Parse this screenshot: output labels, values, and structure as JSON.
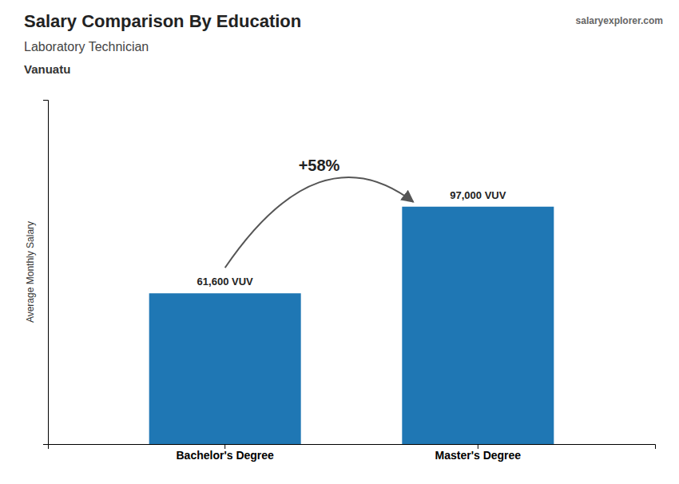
{
  "chart_data": {
    "type": "bar",
    "title": "Salary Comparison By Education",
    "subtitle": "Laboratory Technician",
    "ylabel": "Average Monthly Salary",
    "categories": [
      "Bachelor's Degree",
      "Master's Degree"
    ],
    "values": [
      61600,
      97000
    ],
    "value_labels": [
      "61,600 VUV",
      "97,000 VUV"
    ],
    "data_labels": true,
    "annotations": [
      "Vanuatu",
      "+58%",
      "salaryexplorer.com"
    ],
    "ylim": [
      0,
      140650
    ],
    "tick_labels": "x",
    "grid": false
  }
}
